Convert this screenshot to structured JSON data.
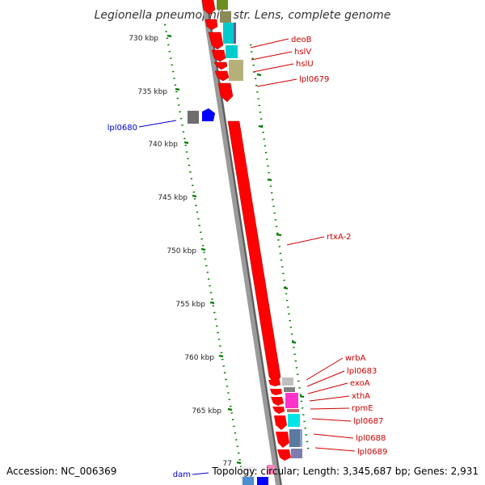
{
  "title": "Legionella pneumophila str. Lens, complete genome",
  "footer": {
    "accession": "Accession: NC_006369",
    "topology": "Topology: circular; Length: 3,345,687 bp; Genes: 2,931"
  },
  "colors": {
    "forward_gene": "#ff0000",
    "backbone": "#808080",
    "tick_green": "#007a00",
    "label_red": "#cc0000",
    "label_blue": "#0000cc"
  },
  "ticks": [
    "730 kbp",
    "735 kbp",
    "740 kbp",
    "745 kbp",
    "750 kbp",
    "755 kbp",
    "760 kbp",
    "765 kbp",
    "77"
  ],
  "gene_labels_right": [
    "deoB",
    "hslV",
    "hslU",
    "lpl0679",
    "rtxA-2",
    "wrbA",
    "lpl0683",
    "exoA",
    "xthA",
    "rpmE",
    "lpl0687",
    "lpl0688",
    "lpl0689"
  ],
  "gene_labels_left": [
    "lpl0680",
    "dam"
  ]
}
